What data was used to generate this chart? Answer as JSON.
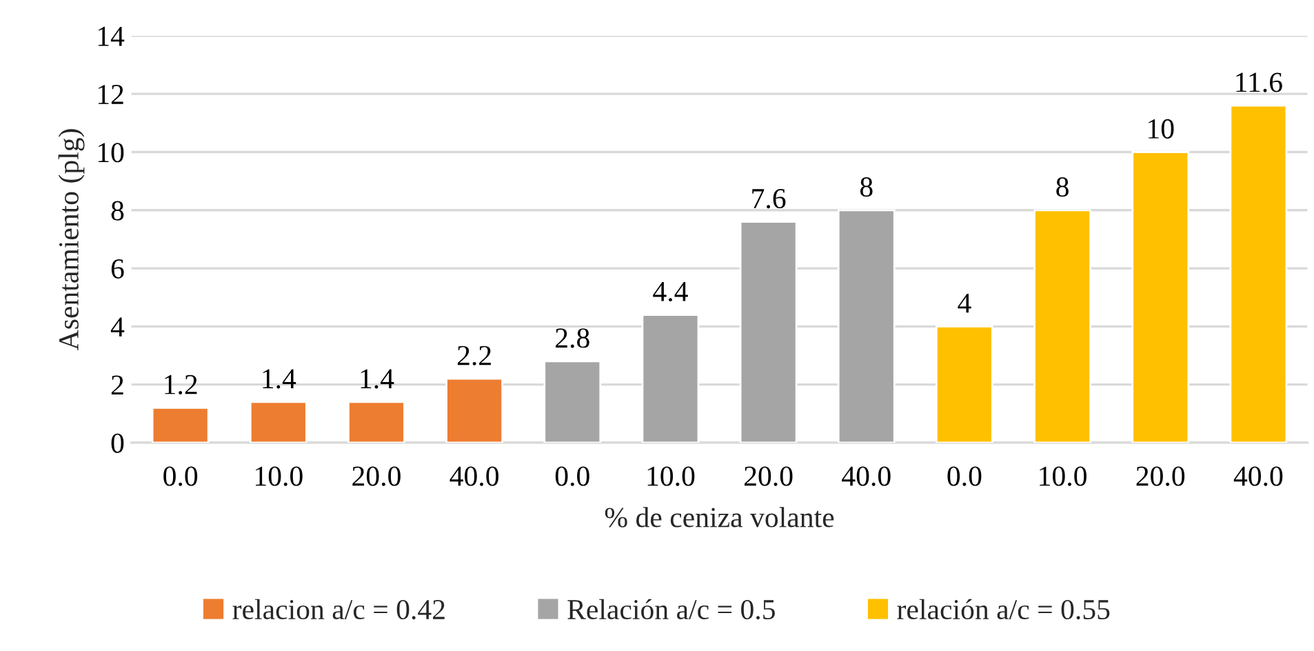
{
  "chart_data": {
    "type": "bar",
    "xlabel": "% de ceniza volante",
    "ylabel": "Asentamiento (plg)",
    "categories": [
      "0.0",
      "10.0",
      "20.0",
      "40.0",
      "0.0",
      "10.0",
      "20.0",
      "40.0",
      "0.0",
      "10.0",
      "20.0",
      "40.0"
    ],
    "series": [
      {
        "name": "relacion a/c = 0.42",
        "color": "#ed7d31",
        "values": [
          1.2,
          1.4,
          1.4,
          2.2,
          null,
          null,
          null,
          null,
          null,
          null,
          null,
          null
        ]
      },
      {
        "name": "Relación a/c = 0.5",
        "color": "#a5a5a5",
        "values": [
          null,
          null,
          null,
          null,
          2.8,
          4.4,
          7.6,
          8,
          null,
          null,
          null,
          null
        ]
      },
      {
        "name": "relación a/c = 0.55",
        "color": "#ffc000",
        "values": [
          null,
          null,
          null,
          null,
          null,
          null,
          null,
          null,
          4,
          8,
          10,
          11.6
        ]
      }
    ],
    "ylim": [
      0,
      14
    ],
    "yticks": [
      0,
      2,
      4,
      6,
      8,
      10,
      12,
      14
    ],
    "grid": "y",
    "legend": "bottom",
    "data_labels": true
  }
}
